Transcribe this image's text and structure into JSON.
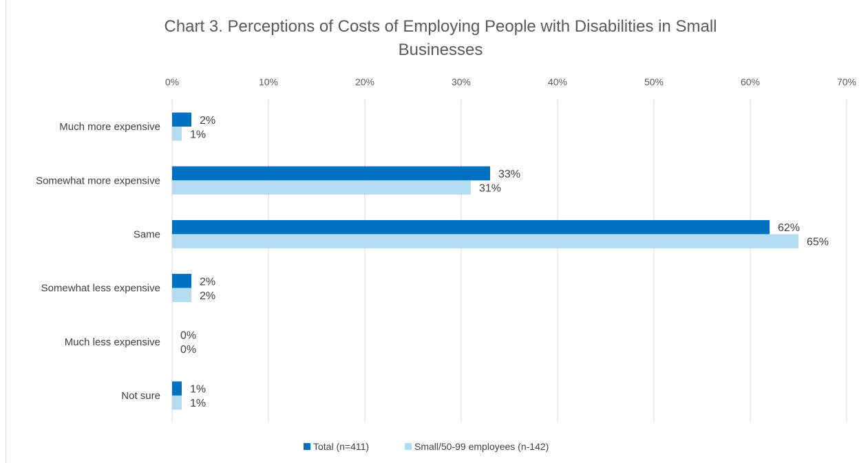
{
  "chart_data": {
    "type": "bar",
    "orientation": "horizontal",
    "title": "Chart 3. Perceptions of Costs of Employing People with Disabilities in Small Businesses",
    "title_lines": [
      "Chart 3. Perceptions of Costs of Employing People with Disabilities in Small",
      "Businesses"
    ],
    "categories": [
      "Much more expensive",
      "Somewhat more expensive",
      "Same",
      "Somewhat less expensive",
      "Much less expensive",
      "Not sure"
    ],
    "series": [
      {
        "name": "Total (n=411)",
        "color": "#0070c0",
        "values": [
          2,
          33,
          62,
          2,
          0,
          1
        ],
        "labels": [
          "2%",
          "33%",
          "62%",
          "2%",
          "0%",
          "1%"
        ]
      },
      {
        "name": "Small/50-99 employees (n-142)",
        "color": "#b4dcf0",
        "values": [
          1,
          31,
          65,
          2,
          0,
          1
        ],
        "labels": [
          "1%",
          "31%",
          "65%",
          "2%",
          "0%",
          "1%"
        ]
      }
    ],
    "xlim": [
      0,
      70
    ],
    "xticks": [
      "0%",
      "10%",
      "20%",
      "30%",
      "40%",
      "50%",
      "60%",
      "70%"
    ],
    "tick_values": [
      0,
      10,
      20,
      30,
      40,
      50,
      60,
      70
    ],
    "axis_position": "top",
    "grid": true,
    "legend_position": "bottom"
  }
}
